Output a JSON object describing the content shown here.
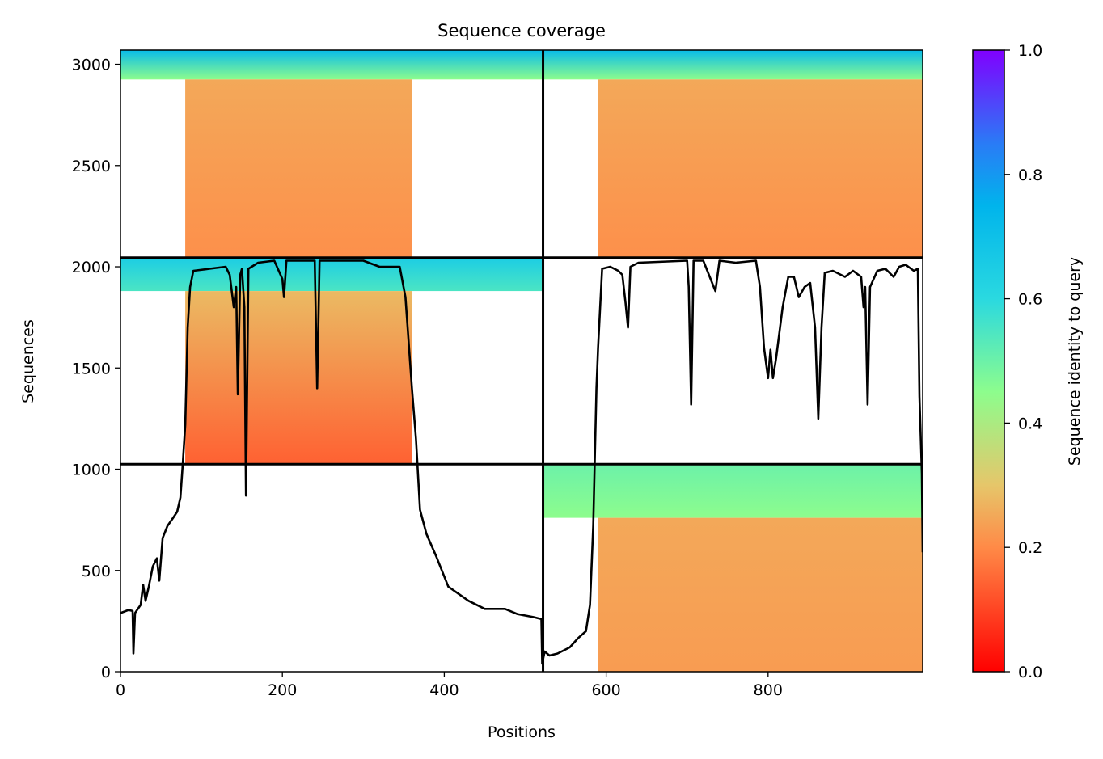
{
  "chart_data": {
    "type": "heatmap",
    "title": "Sequence coverage",
    "xlabel": "Positions",
    "ylabel": "Sequences",
    "xlim": [
      0,
      991
    ],
    "ylim": [
      0,
      3070
    ],
    "x_ticks": [
      0,
      200,
      400,
      600,
      800
    ],
    "y_ticks": [
      0,
      500,
      1000,
      1500,
      2000,
      2500,
      3000
    ],
    "colorbar": {
      "label": "Sequence identity to query",
      "range": [
        0,
        1
      ],
      "ticks": [
        0.0,
        0.2,
        0.4,
        0.6,
        0.8,
        1.0
      ],
      "colormap": "rainbow_r",
      "stops": [
        {
          "v": 0.0,
          "c": "#ff0000"
        },
        {
          "v": 0.2,
          "c": "#ff8a47"
        },
        {
          "v": 0.3,
          "c": "#e6c66a"
        },
        {
          "v": 0.45,
          "c": "#8dfd8d"
        },
        {
          "v": 0.6,
          "c": "#2ad9e0"
        },
        {
          "v": 0.75,
          "c": "#00b4ec"
        },
        {
          "v": 0.85,
          "c": "#2a7bf6"
        },
        {
          "v": 1.0,
          "c": "#8000ff"
        }
      ]
    },
    "boundaries": {
      "x_split": 522,
      "y_splits": [
        1025,
        2045
      ]
    },
    "blocks": [
      {
        "name": "block-top-left",
        "x": [
          0,
          522
        ],
        "y": [
          2045,
          3070
        ],
        "bands": [
          {
            "y": [
              2925,
              3070
            ],
            "x": [
              0,
              522
            ],
            "id_top": 0.72,
            "id_bottom": 0.45
          },
          {
            "y": [
              2045,
              2925
            ],
            "x": [
              80,
              360
            ],
            "id_top": 0.25,
            "id_bottom": 0.21
          }
        ]
      },
      {
        "name": "block-top-right",
        "x": [
          522,
          991
        ],
        "y": [
          2045,
          3070
        ],
        "bands": [
          {
            "y": [
              2925,
              3070
            ],
            "x": [
              522,
              991
            ],
            "id_top": 0.72,
            "id_bottom": 0.45
          },
          {
            "y": [
              2045,
              2925
            ],
            "x": [
              590,
              991
            ],
            "id_top": 0.25,
            "id_bottom": 0.21
          }
        ]
      },
      {
        "name": "block-middle-left",
        "x": [
          0,
          522
        ],
        "y": [
          1025,
          2045
        ],
        "bands": [
          {
            "y": [
              1880,
              2045
            ],
            "x": [
              0,
              522
            ],
            "id_top": 0.65,
            "id_bottom": 0.55
          },
          {
            "y": [
              1025,
              1880
            ],
            "x": [
              80,
              360
            ],
            "id_top": 0.28,
            "id_bottom": 0.14
          }
        ]
      },
      {
        "name": "block-bottom-right",
        "x": [
          522,
          991
        ],
        "y": [
          0,
          1025
        ],
        "bands": [
          {
            "y": [
              760,
              1025
            ],
            "x": [
              522,
              991
            ],
            "id_top": 0.5,
            "id_bottom": 0.45
          },
          {
            "y": [
              0,
              760
            ],
            "x": [
              590,
              991
            ],
            "id_top": 0.25,
            "id_bottom": 0.23
          }
        ]
      }
    ],
    "coverage_line": {
      "color": "#000000",
      "points": [
        [
          0,
          290
        ],
        [
          10,
          305
        ],
        [
          15,
          300
        ],
        [
          16,
          90
        ],
        [
          18,
          290
        ],
        [
          25,
          330
        ],
        [
          28,
          430
        ],
        [
          31,
          350
        ],
        [
          35,
          420
        ],
        [
          40,
          520
        ],
        [
          45,
          560
        ],
        [
          48,
          450
        ],
        [
          52,
          660
        ],
        [
          58,
          720
        ],
        [
          65,
          760
        ],
        [
          70,
          790
        ],
        [
          74,
          860
        ],
        [
          77,
          1030
        ],
        [
          80,
          1220
        ],
        [
          83,
          1700
        ],
        [
          86,
          1900
        ],
        [
          90,
          1980
        ],
        [
          110,
          1990
        ],
        [
          130,
          2000
        ],
        [
          135,
          1960
        ],
        [
          140,
          1800
        ],
        [
          143,
          1900
        ],
        [
          145,
          1370
        ],
        [
          148,
          1960
        ],
        [
          150,
          1990
        ],
        [
          153,
          1800
        ],
        [
          155,
          870
        ],
        [
          158,
          1990
        ],
        [
          170,
          2020
        ],
        [
          190,
          2030
        ],
        [
          200,
          1940
        ],
        [
          202,
          1850
        ],
        [
          205,
          2030
        ],
        [
          225,
          2030
        ],
        [
          240,
          2030
        ],
        [
          243,
          1400
        ],
        [
          246,
          2030
        ],
        [
          300,
          2030
        ],
        [
          320,
          2000
        ],
        [
          345,
          2000
        ],
        [
          352,
          1850
        ],
        [
          360,
          1400
        ],
        [
          365,
          1150
        ],
        [
          370,
          800
        ],
        [
          378,
          680
        ],
        [
          390,
          570
        ],
        [
          405,
          420
        ],
        [
          430,
          350
        ],
        [
          450,
          310
        ],
        [
          475,
          310
        ],
        [
          490,
          285
        ],
        [
          510,
          270
        ],
        [
          520,
          260
        ],
        [
          521,
          40
        ],
        [
          524,
          100
        ],
        [
          530,
          80
        ],
        [
          540,
          90
        ],
        [
          555,
          120
        ],
        [
          565,
          165
        ],
        [
          575,
          200
        ],
        [
          580,
          330
        ],
        [
          584,
          720
        ],
        [
          588,
          1400
        ],
        [
          590,
          1600
        ],
        [
          595,
          1990
        ],
        [
          605,
          2000
        ],
        [
          615,
          1980
        ],
        [
          620,
          1960
        ],
        [
          624,
          1820
        ],
        [
          627,
          1700
        ],
        [
          630,
          2000
        ],
        [
          640,
          2020
        ],
        [
          700,
          2030
        ],
        [
          702,
          1900
        ],
        [
          705,
          1320
        ],
        [
          708,
          2030
        ],
        [
          720,
          2030
        ],
        [
          735,
          1880
        ],
        [
          740,
          2030
        ],
        [
          760,
          2020
        ],
        [
          785,
          2030
        ],
        [
          790,
          1900
        ],
        [
          795,
          1600
        ],
        [
          800,
          1450
        ],
        [
          803,
          1590
        ],
        [
          806,
          1450
        ],
        [
          810,
          1550
        ],
        [
          818,
          1800
        ],
        [
          825,
          1950
        ],
        [
          832,
          1950
        ],
        [
          838,
          1850
        ],
        [
          845,
          1900
        ],
        [
          852,
          1920
        ],
        [
          858,
          1700
        ],
        [
          862,
          1250
        ],
        [
          866,
          1700
        ],
        [
          870,
          1970
        ],
        [
          880,
          1980
        ],
        [
          895,
          1950
        ],
        [
          905,
          1980
        ],
        [
          915,
          1950
        ],
        [
          918,
          1800
        ],
        [
          920,
          1900
        ],
        [
          923,
          1320
        ],
        [
          926,
          1900
        ],
        [
          935,
          1980
        ],
        [
          945,
          1990
        ],
        [
          955,
          1950
        ],
        [
          962,
          2000
        ],
        [
          970,
          2010
        ],
        [
          980,
          1980
        ],
        [
          985,
          1990
        ],
        [
          987,
          1360
        ],
        [
          990,
          980
        ],
        [
          991,
          590
        ]
      ]
    }
  }
}
